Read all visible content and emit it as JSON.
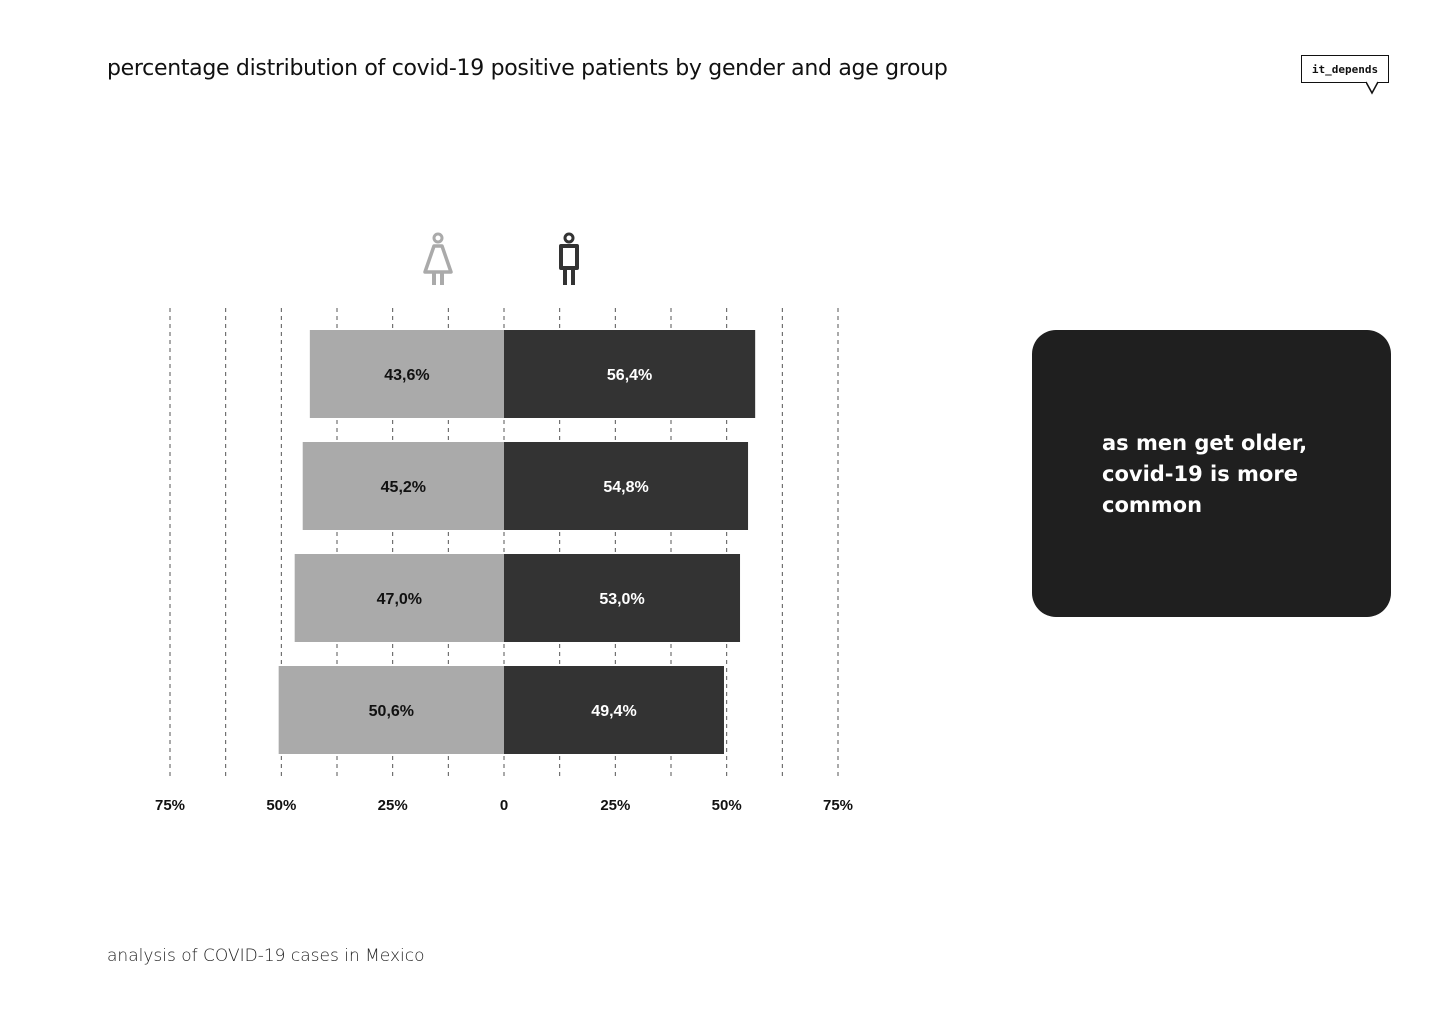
{
  "header": {
    "title": "percentage distribution of covid-19 positive patients by gender and age group",
    "brand_label": "it_depends"
  },
  "legend": [
    {
      "name": "female",
      "icon": "female-icon",
      "color": "#aaaaaa"
    },
    {
      "name": "male",
      "icon": "male-icon",
      "color": "#333333"
    }
  ],
  "chart_data": {
    "type": "bar",
    "orientation": "horizontal-diverging",
    "title": "percentage distribution of covid-19 positive patients by gender and age group",
    "categories": [
      "",
      "",
      "",
      ""
    ],
    "series": [
      {
        "name": "female",
        "side": "left",
        "color": "#aaaaaa",
        "values": [
          43.6,
          45.2,
          47.0,
          50.6
        ],
        "labels": [
          "43,6%",
          "45,2%",
          "47,0%",
          "50,6%"
        ]
      },
      {
        "name": "male",
        "side": "right",
        "color": "#333333",
        "values": [
          56.4,
          54.8,
          53.0,
          49.4
        ],
        "labels": [
          "56,4%",
          "54,8%",
          "53,0%",
          "49,4%"
        ]
      }
    ],
    "xlim": [
      -75,
      75
    ],
    "gridlines": [
      -75,
      -62.5,
      -50,
      -37.5,
      -25,
      -12.5,
      0,
      12.5,
      25,
      37.5,
      50,
      62.5,
      75
    ],
    "ticks": [
      {
        "value": -75,
        "label": "75%"
      },
      {
        "value": -50,
        "label": "50%"
      },
      {
        "value": -25,
        "label": "25%"
      },
      {
        "value": 0,
        "label": "0"
      },
      {
        "value": 25,
        "label": "25%"
      },
      {
        "value": 50,
        "label": "50%"
      },
      {
        "value": 75,
        "label": "75%"
      }
    ],
    "grid": "vertical-dashed",
    "xlabel": "",
    "ylabel": ""
  },
  "callout": {
    "lines": [
      "as men get older,",
      "covid-19 is more",
      "common"
    ]
  },
  "footer": {
    "text": "analysis of COVID-19 cases in Mexico"
  }
}
